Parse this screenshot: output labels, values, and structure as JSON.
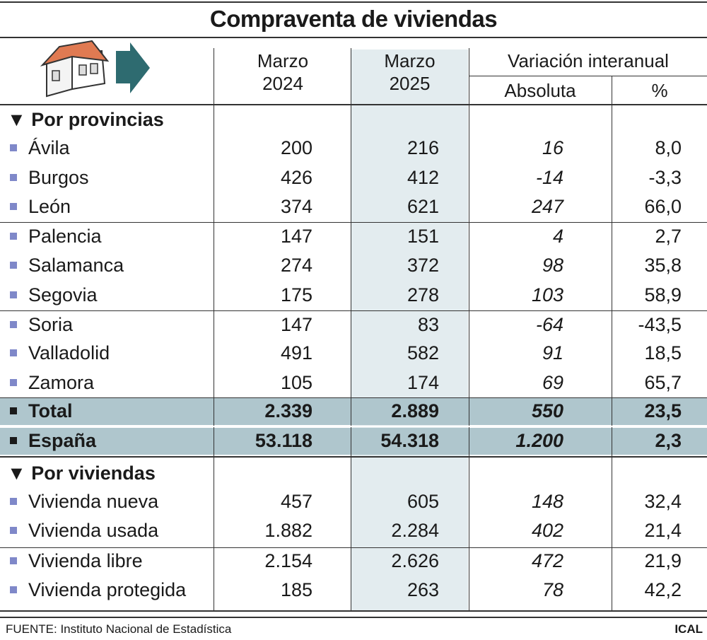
{
  "title": "Compraventa de viviendas",
  "headers": {
    "col1": [
      "Marzo",
      "2024"
    ],
    "col2": [
      "Marzo",
      "2025"
    ],
    "group": "Variación interanual",
    "abs": "Absoluta",
    "pct": "%"
  },
  "sections": {
    "provincias": "Por provincias",
    "viviendas": "Por viviendas"
  },
  "provincias": [
    {
      "name": "Ávila",
      "v2024": "200",
      "v2025": "216",
      "abs": "16",
      "pct": "8,0"
    },
    {
      "name": "Burgos",
      "v2024": "426",
      "v2025": "412",
      "abs": "-14",
      "pct": "-3,3"
    },
    {
      "name": "León",
      "v2024": "374",
      "v2025": "621",
      "abs": "247",
      "pct": "66,0"
    },
    {
      "name": "Palencia",
      "v2024": "147",
      "v2025": "151",
      "abs": "4",
      "pct": "2,7"
    },
    {
      "name": "Salamanca",
      "v2024": "274",
      "v2025": "372",
      "abs": "98",
      "pct": "35,8"
    },
    {
      "name": "Segovia",
      "v2024": "175",
      "v2025": "278",
      "abs": "103",
      "pct": "58,9"
    },
    {
      "name": "Soria",
      "v2024": "147",
      "v2025": "83",
      "abs": "-64",
      "pct": "-43,5"
    },
    {
      "name": "Valladolid",
      "v2024": "491",
      "v2025": "582",
      "abs": "91",
      "pct": "18,5"
    },
    {
      "name": "Zamora",
      "v2024": "105",
      "v2025": "174",
      "abs": "69",
      "pct": "65,7"
    }
  ],
  "totals": [
    {
      "name": "Total",
      "v2024": "2.339",
      "v2025": "2.889",
      "abs": "550",
      "pct": "23,5"
    },
    {
      "name": "España",
      "v2024": "53.118",
      "v2025": "54.318",
      "abs": "1.200",
      "pct": "2,3"
    }
  ],
  "viviendas": [
    {
      "name": "Vivienda nueva",
      "v2024": "457",
      "v2025": "605",
      "abs": "148",
      "pct": "32,4"
    },
    {
      "name": "Vivienda usada",
      "v2024": "1.882",
      "v2025": "2.284",
      "abs": "402",
      "pct": "21,4"
    },
    {
      "name": "Vivienda libre",
      "v2024": "2.154",
      "v2025": "2.626",
      "abs": "472",
      "pct": "21,9"
    },
    {
      "name": "Vivienda protegida",
      "v2024": "185",
      "v2025": "263",
      "abs": "78",
      "pct": "42,2"
    }
  ],
  "footer": {
    "source": "FUENTE: Instituto Nacional de Estadística",
    "credit": "ICAL"
  },
  "colors": {
    "highlight_column": "#e3ecef",
    "total_band": "#afc6cd",
    "bullet": "#7f88c9",
    "arrow": "#2e6b70",
    "roof": "#e07a52"
  },
  "icons": [
    "house-icon",
    "arrow-right-icon",
    "triangle-down-icon"
  ]
}
